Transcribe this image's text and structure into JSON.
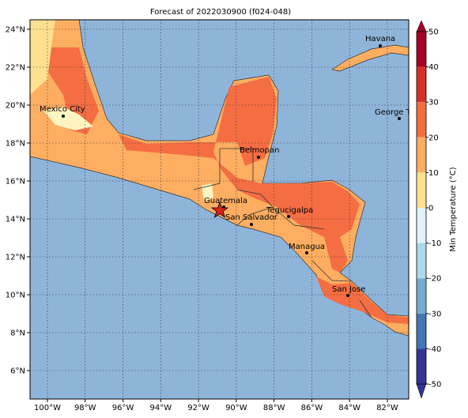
{
  "title": "Forecast of 2022030900 (f024-048)",
  "map": {
    "xlim": [
      -100.92,
      -80.87
    ],
    "ylim": [
      4.5,
      24.5
    ],
    "lon_ticks": [
      {
        "value": -100,
        "label": "100°W"
      },
      {
        "value": -98,
        "label": "98°W"
      },
      {
        "value": -96,
        "label": "96°W"
      },
      {
        "value": -94,
        "label": "94°W"
      },
      {
        "value": -92,
        "label": "92°W"
      },
      {
        "value": -90,
        "label": "90°W"
      },
      {
        "value": -88,
        "label": "88°W"
      },
      {
        "value": -86,
        "label": "86°W"
      },
      {
        "value": -84,
        "label": "84°W"
      },
      {
        "value": -82,
        "label": "82°W"
      }
    ],
    "lat_ticks": [
      {
        "value": 24,
        "label": "24°N"
      },
      {
        "value": 22,
        "label": "22°N"
      },
      {
        "value": 20,
        "label": "20°N"
      },
      {
        "value": 18,
        "label": "18°N"
      },
      {
        "value": 16,
        "label": "16°N"
      },
      {
        "value": 14,
        "label": "14°N"
      },
      {
        "value": 12,
        "label": "12°N"
      },
      {
        "value": 10,
        "label": "10°N"
      },
      {
        "value": 8,
        "label": "8°N"
      },
      {
        "value": 6,
        "label": "6°N"
      }
    ],
    "cities": [
      "Mexico City",
      "Havana",
      "George Town",
      "Belmopan",
      "Guatemala",
      "San Salvador",
      "Tegucigalpa",
      "Managua",
      "San Jose"
    ]
  },
  "colorbar": {
    "label": "Min Temperature (°C)",
    "lim": [
      -50,
      50
    ],
    "ticks": [
      50,
      40,
      30,
      20,
      10,
      0,
      -10,
      -20,
      -30,
      -40,
      -50
    ],
    "colors": [
      "#a50026",
      "#d73027",
      "#f46d43",
      "#fdae61",
      "#fee090",
      "#e0f3f8",
      "#abd9e9",
      "#74add1",
      "#4575b4",
      "#313695"
    ]
  }
}
